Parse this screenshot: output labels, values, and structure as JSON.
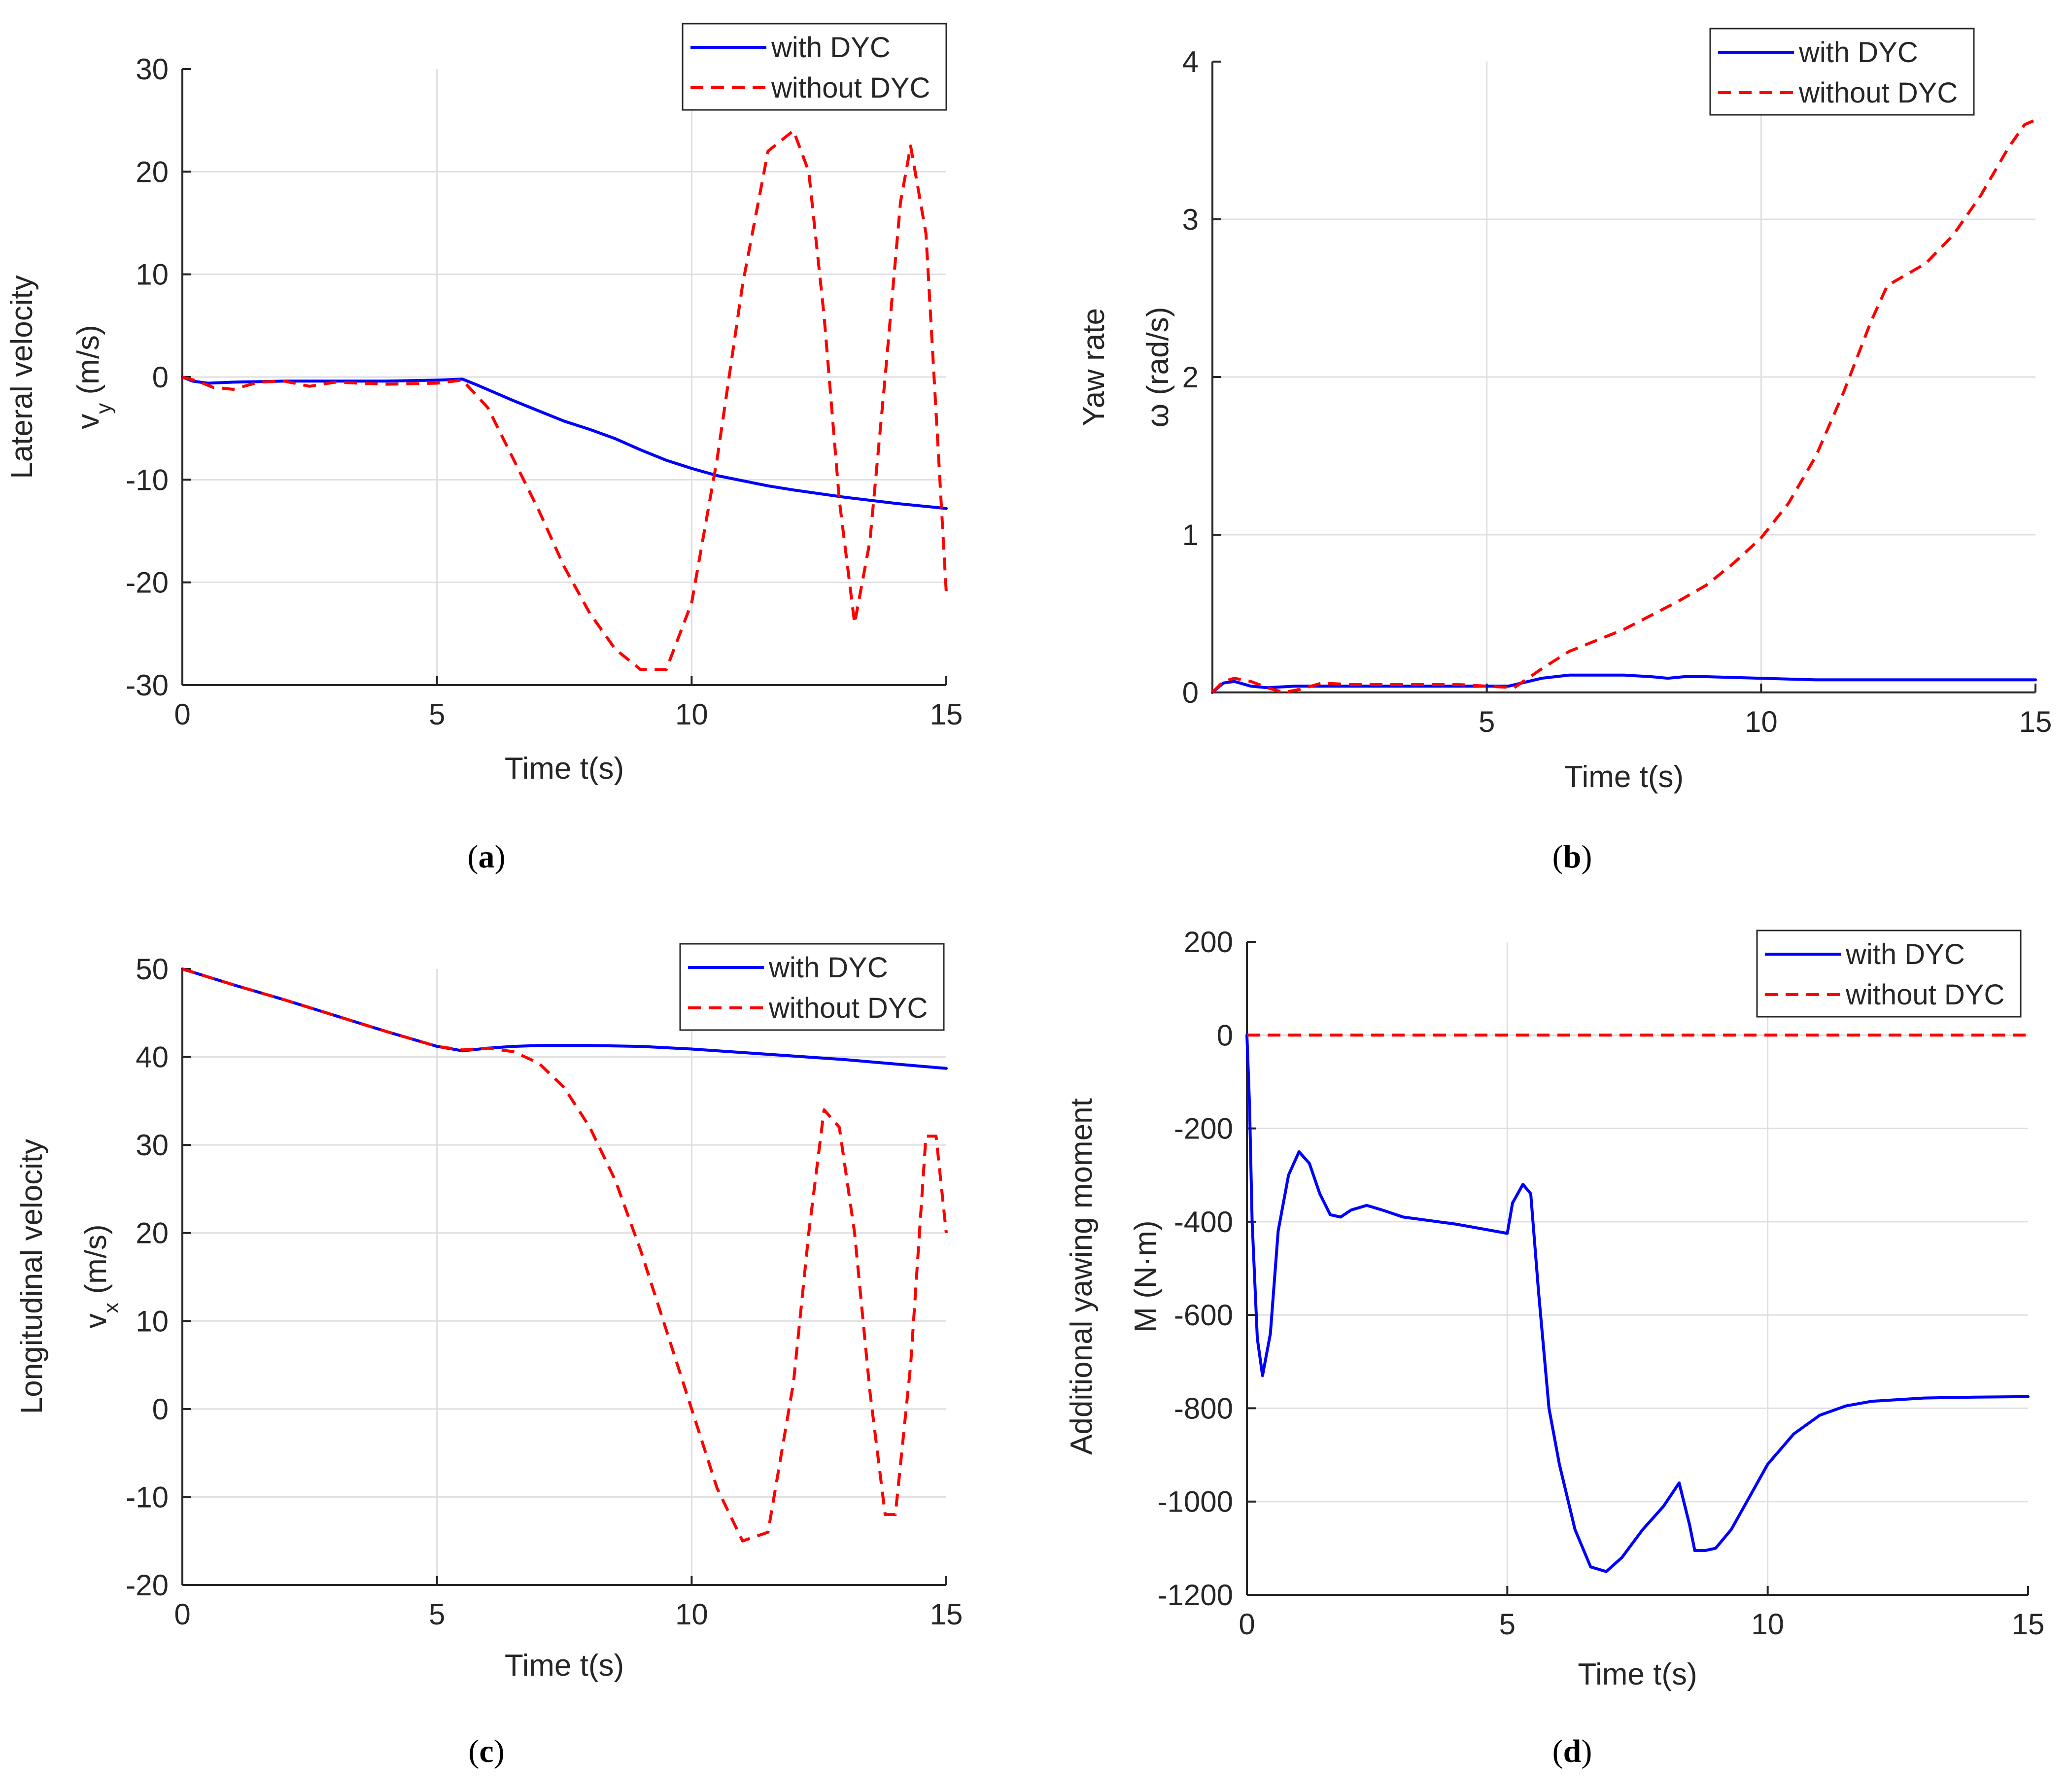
{
  "colors": {
    "with": "#0000ff",
    "without": "#ff0000",
    "axis": "#262626",
    "grid": "#dfdfdf"
  },
  "chart_data": [
    {
      "id": "a",
      "type": "line",
      "caption": {
        "letter": "a"
      },
      "xlabel": "Time t(s)",
      "ylabel": [
        "Lateral velocity",
        "v",
        "y",
        " (m/s)"
      ],
      "xlim": [
        0,
        15
      ],
      "ylim": [
        -30,
        30
      ],
      "xticks": [
        0,
        5,
        10,
        15
      ],
      "yticks": [
        -30,
        -20,
        -10,
        0,
        10,
        20,
        30
      ],
      "xtick_labels": [
        "0",
        "5",
        "10",
        "15"
      ],
      "ytick_labels": [
        "-30",
        "-20",
        "-10",
        "0",
        "10",
        "20",
        "30"
      ],
      "legend": {
        "position": "top-right",
        "entries": [
          "with DYC",
          "without DYC"
        ]
      },
      "series": [
        {
          "name": "with DYC",
          "style": "solid",
          "x": [
            0,
            0.2,
            0.5,
            1,
            2,
            3,
            4,
            5,
            5.5,
            5.8,
            6.5,
            7,
            7.5,
            8,
            8.5,
            9,
            9.5,
            10,
            10.5,
            11,
            11.5,
            12,
            13,
            14,
            15
          ],
          "y": [
            0,
            -0.4,
            -0.6,
            -0.5,
            -0.4,
            -0.4,
            -0.4,
            -0.3,
            -0.2,
            -0.8,
            -2.3,
            -3.3,
            -4.3,
            -5.1,
            -6,
            -7.1,
            -8.1,
            -8.9,
            -9.6,
            -10.1,
            -10.6,
            -11,
            -11.7,
            -12.3,
            -12.8
          ]
        },
        {
          "name": "without DYC",
          "style": "dashed",
          "x": [
            0,
            0.3,
            0.6,
            1,
            1.5,
            2,
            2.5,
            3,
            4,
            5,
            5.5,
            6,
            6.5,
            7,
            7.5,
            8,
            8.5,
            9,
            9.5,
            10,
            10.5,
            11,
            11.5,
            12,
            12.3,
            12.6,
            12.9,
            13.2,
            13.5,
            13.8,
            14.1,
            14.3,
            14.6,
            15
          ],
          "y": [
            0,
            -0.4,
            -1,
            -1.2,
            -0.5,
            -0.4,
            -0.9,
            -0.5,
            -0.7,
            -0.6,
            -0.3,
            -3,
            -8,
            -13,
            -18.5,
            -23,
            -26.5,
            -28.5,
            -28.5,
            -22,
            -8,
            9,
            22,
            24,
            20,
            6,
            -12,
            -24,
            -16,
            0,
            17,
            22.5,
            14,
            -21
          ]
        }
      ]
    },
    {
      "id": "b",
      "type": "line",
      "caption": {
        "letter": "b"
      },
      "xlabel": "Time t(s)",
      "ylabel": [
        "Yaw rate",
        "ω (rad/s)"
      ],
      "xlim": [
        0,
        15
      ],
      "ylim": [
        0,
        4
      ],
      "xticks": [
        5,
        10,
        15
      ],
      "yticks": [
        0,
        1,
        2,
        3,
        4
      ],
      "xtick_labels": [
        "5",
        "10",
        "15"
      ],
      "ytick_labels": [
        "0",
        "1",
        "2",
        "3",
        "4"
      ],
      "legend": {
        "position": "top-right",
        "entries": [
          "with DYC",
          "without DYC"
        ]
      },
      "series": [
        {
          "name": "with DYC",
          "style": "solid",
          "x": [
            0,
            0.2,
            0.4,
            0.7,
            1,
            1.5,
            2,
            3,
            4,
            5,
            5.4,
            6,
            6.5,
            7,
            7.5,
            8,
            8.3,
            8.6,
            9,
            10,
            11,
            12,
            13,
            14,
            15
          ],
          "y": [
            0,
            0.06,
            0.07,
            0.04,
            0.03,
            0.04,
            0.04,
            0.04,
            0.04,
            0.04,
            0.04,
            0.09,
            0.11,
            0.11,
            0.11,
            0.1,
            0.09,
            0.1,
            0.1,
            0.09,
            0.08,
            0.08,
            0.08,
            0.08,
            0.08
          ]
        },
        {
          "name": "without DYC",
          "style": "dashed",
          "x": [
            0,
            0.2,
            0.4,
            0.7,
            1,
            1.3,
            1.6,
            2,
            2.5,
            3,
            3.5,
            4,
            4.5,
            5,
            5.5,
            6,
            6.5,
            7,
            7.5,
            8,
            8.5,
            9,
            9.5,
            10,
            10.5,
            11,
            11.5,
            12,
            12.3,
            12.6,
            13,
            13.5,
            14,
            14.5,
            14.8,
            15
          ],
          "y": [
            0,
            0.07,
            0.09,
            0.07,
            0.03,
            0,
            0.02,
            0.06,
            0.05,
            0.05,
            0.05,
            0.05,
            0.05,
            0.04,
            0.03,
            0.15,
            0.26,
            0.33,
            0.4,
            0.49,
            0.58,
            0.68,
            0.82,
            0.98,
            1.2,
            1.5,
            1.9,
            2.35,
            2.58,
            2.64,
            2.72,
            2.9,
            3.15,
            3.45,
            3.6,
            3.63
          ]
        }
      ]
    },
    {
      "id": "c",
      "type": "line",
      "caption": {
        "letter": "c"
      },
      "xlabel": "Time t(s)",
      "ylabel": [
        "Longitudinal velocity",
        "v",
        "x",
        " (m/s)"
      ],
      "xlim": [
        0,
        15
      ],
      "ylim": [
        -20,
        50
      ],
      "xticks": [
        0,
        5,
        10,
        15
      ],
      "yticks": [
        -20,
        -10,
        0,
        10,
        20,
        30,
        40,
        50
      ],
      "xtick_labels": [
        "0",
        "5",
        "10",
        "15"
      ],
      "ytick_labels": [
        "-20",
        "-10",
        "0",
        "10",
        "20",
        "30",
        "40",
        "50"
      ],
      "legend": {
        "position": "top-right",
        "entries": [
          "with DYC",
          "without DYC"
        ]
      },
      "series": [
        {
          "name": "with DYC",
          "style": "solid",
          "x": [
            0,
            1,
            2,
            3,
            4,
            5,
            5.5,
            6,
            6.5,
            7,
            7.5,
            8,
            9,
            10,
            11,
            12,
            13,
            14,
            15
          ],
          "y": [
            50,
            48.2,
            46.5,
            44.7,
            42.9,
            41.2,
            40.7,
            41,
            41.2,
            41.3,
            41.3,
            41.3,
            41.2,
            40.9,
            40.5,
            40.1,
            39.7,
            39.2,
            38.7
          ]
        },
        {
          "name": "without DYC",
          "style": "dashed",
          "x": [
            0,
            1,
            2,
            3,
            4,
            5,
            5.5,
            6,
            6.5,
            7,
            7.5,
            8,
            8.5,
            9,
            9.5,
            10,
            10.5,
            11,
            11.5,
            12,
            12.3,
            12.6,
            12.9,
            13.2,
            13.5,
            13.8,
            14,
            14.3,
            14.6,
            14.8,
            15
          ],
          "y": [
            50,
            48.2,
            46.5,
            44.7,
            42.9,
            41.2,
            40.8,
            41,
            40.6,
            39.3,
            36.5,
            32,
            26,
            18,
            9,
            0,
            -9,
            -15,
            -14,
            3,
            20,
            34,
            32,
            20,
            2,
            -12,
            -12,
            5,
            31,
            31,
            20
          ]
        }
      ]
    },
    {
      "id": "d",
      "type": "line",
      "caption": {
        "letter": "d"
      },
      "xlabel": "Time t(s)",
      "ylabel": [
        "Additional yawing moment",
        "M (N·m)"
      ],
      "xlim": [
        0,
        15
      ],
      "ylim": [
        -1200,
        200
      ],
      "xticks": [
        0,
        5,
        10,
        15
      ],
      "yticks": [
        -1200,
        -1000,
        -800,
        -600,
        -400,
        -200,
        0,
        200
      ],
      "xtick_labels": [
        "0",
        "5",
        "10",
        "15"
      ],
      "ytick_labels": [
        "-1200",
        "-1000",
        "-800",
        "-600",
        "-400",
        "-200",
        "0",
        "200"
      ],
      "legend": {
        "position": "top-right",
        "entries": [
          "with DYC",
          "without DYC"
        ]
      },
      "series": [
        {
          "name": "with DYC",
          "style": "solid",
          "x": [
            0,
            0.05,
            0.1,
            0.2,
            0.3,
            0.45,
            0.6,
            0.8,
            1,
            1.2,
            1.4,
            1.6,
            1.8,
            2,
            2.3,
            2.6,
            3,
            4,
            5,
            5.1,
            5.3,
            5.45,
            5.6,
            5.8,
            6,
            6.3,
            6.6,
            6.9,
            7.2,
            7.6,
            8,
            8.3,
            8.5,
            8.6,
            8.8,
            9,
            9.3,
            9.7,
            10,
            10.5,
            11,
            11.5,
            12,
            13,
            14,
            15
          ],
          "y": [
            0,
            -150,
            -400,
            -650,
            -730,
            -640,
            -420,
            -300,
            -250,
            -275,
            -340,
            -385,
            -390,
            -375,
            -365,
            -375,
            -390,
            -405,
            -425,
            -360,
            -320,
            -340,
            -550,
            -800,
            -920,
            -1060,
            -1140,
            -1150,
            -1120,
            -1060,
            -1010,
            -960,
            -1050,
            -1105,
            -1105,
            -1100,
            -1060,
            -980,
            -920,
            -855,
            -815,
            -795,
            -785,
            -778,
            -776,
            -775
          ]
        },
        {
          "name": "without DYC",
          "style": "dashed",
          "x": [
            0,
            15
          ],
          "y": [
            0,
            0
          ]
        }
      ]
    }
  ]
}
